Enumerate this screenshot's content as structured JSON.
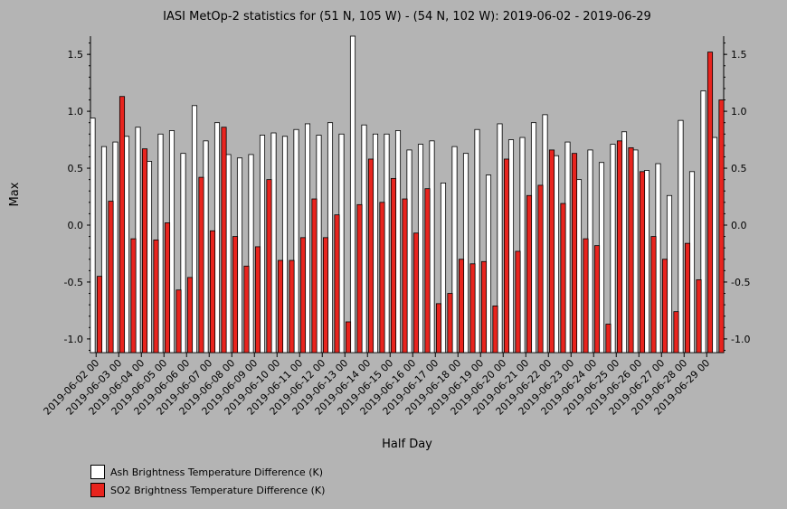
{
  "chart_data": {
    "type": "bar",
    "title": "IASI MetOp-2 statistics for (51 N, 105 W) - (54 N, 102 W): 2019-06-02 - 2019-06-29",
    "xlabel": "Half Day",
    "ylabel": "Max",
    "ylim": [
      -1.12,
      1.66
    ],
    "yticks": [
      1.5,
      1.0,
      0.5,
      0.0,
      -0.5,
      -1.0
    ],
    "ytick_labels": [
      "1.5",
      "1.0",
      "0.5",
      "0.0",
      "-0.5",
      "-1.0"
    ],
    "xtick_labels": [
      "2019-06-02 00",
      "2019-06-03 00",
      "2019-06-04 00",
      "2019-06-05 00",
      "2019-06-06 00",
      "2019-06-07 00",
      "2019-06-08 00",
      "2019-06-09 00",
      "2019-06-10 00",
      "2019-06-11 00",
      "2019-06-12 00",
      "2019-06-13 00",
      "2019-06-14 00",
      "2019-06-15 00",
      "2019-06-16 00",
      "2019-06-17 00",
      "2019-06-18 00",
      "2019-06-19 00",
      "2019-06-20 00",
      "2019-06-21 00",
      "2019-06-22 00",
      "2019-06-23 00",
      "2019-06-24 00",
      "2019-06-25 00",
      "2019-06-26 00",
      "2019-06-27 00",
      "2019-06-28 00",
      "2019-06-29 00"
    ],
    "legend_position": "bottom-left",
    "series": [
      {
        "name": "Ash Brightness Temperature Difference (K)",
        "color": "#ffffff",
        "values": [
          0.94,
          0.69,
          0.73,
          0.78,
          0.86,
          0.56,
          0.8,
          0.83,
          0.63,
          1.05,
          0.74,
          0.9,
          0.62,
          0.59,
          0.62,
          0.79,
          0.81,
          0.78,
          0.84,
          0.89,
          0.79,
          0.9,
          0.8,
          1.66,
          0.88,
          0.8,
          0.8,
          0.83,
          0.66,
          0.71,
          0.74,
          0.37,
          0.69,
          0.63,
          0.84,
          0.44,
          0.89,
          0.75,
          0.77,
          0.9,
          0.97,
          0.61,
          0.73,
          0.4,
          0.66,
          0.55,
          0.71,
          0.82,
          0.66,
          0.48,
          0.54,
          0.26,
          0.92,
          0.47,
          1.18,
          0.77
        ]
      },
      {
        "name": "SO2 Brightness Temperature Difference (K)",
        "color": "#e8241e",
        "values": [
          -0.45,
          0.21,
          1.13,
          -0.12,
          0.67,
          -0.13,
          0.02,
          -0.57,
          -0.46,
          0.42,
          -0.05,
          0.86,
          -0.1,
          -0.36,
          -0.19,
          0.4,
          -0.31,
          -0.31,
          -0.11,
          0.23,
          -0.11,
          0.09,
          -0.85,
          0.18,
          0.58,
          0.2,
          0.41,
          0.23,
          -0.07,
          0.32,
          -0.69,
          -0.6,
          -0.3,
          -0.34,
          -0.32,
          -0.71,
          0.58,
          -0.23,
          0.26,
          0.35,
          0.66,
          0.19,
          0.63,
          -0.12,
          -0.18,
          -0.87,
          0.74,
          0.68,
          0.47,
          -0.1,
          -0.3,
          -0.76,
          -0.16,
          -0.48,
          1.52,
          1.1
        ]
      }
    ]
  }
}
